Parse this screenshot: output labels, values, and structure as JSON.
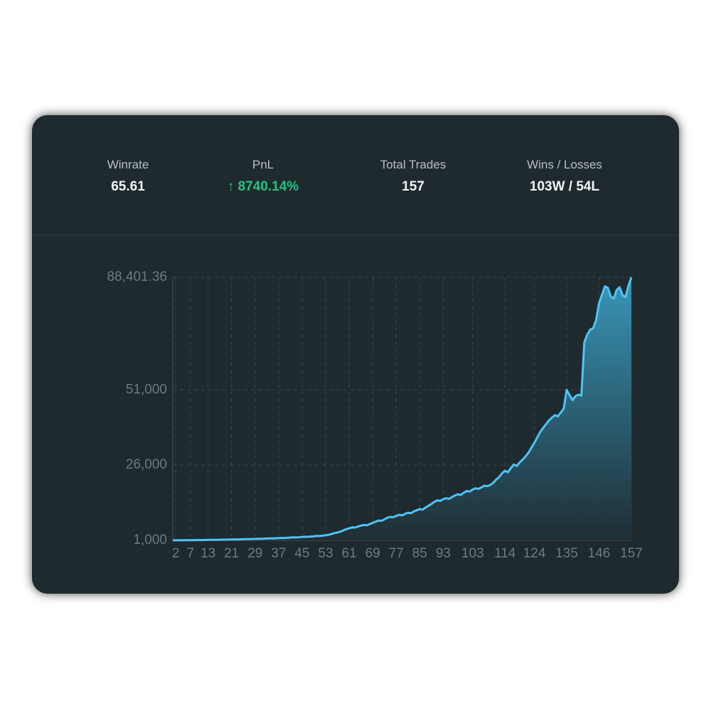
{
  "stats": [
    {
      "label": "Winrate",
      "value": "65.61"
    },
    {
      "label": "PnL",
      "value": "↑ 8740.14%"
    },
    {
      "label": "Total Trades",
      "value": "157"
    },
    {
      "label": "Wins / Losses",
      "value": "103W / 54L"
    }
  ],
  "chart_data": {
    "type": "area",
    "color": "#4fc3f7",
    "grid": true,
    "x": [
      1,
      2,
      3,
      4,
      5,
      6,
      7,
      8,
      9,
      10,
      11,
      12,
      13,
      14,
      15,
      16,
      17,
      18,
      19,
      20,
      21,
      22,
      23,
      24,
      25,
      26,
      27,
      28,
      29,
      30,
      31,
      32,
      33,
      34,
      35,
      36,
      37,
      38,
      39,
      40,
      41,
      42,
      43,
      44,
      45,
      46,
      47,
      48,
      49,
      50,
      51,
      52,
      53,
      54,
      55,
      56,
      57,
      58,
      59,
      60,
      61,
      62,
      63,
      64,
      65,
      66,
      67,
      68,
      69,
      70,
      71,
      72,
      73,
      74,
      75,
      76,
      77,
      78,
      79,
      80,
      81,
      82,
      83,
      84,
      85,
      86,
      87,
      88,
      89,
      90,
      91,
      92,
      93,
      94,
      95,
      96,
      97,
      98,
      99,
      100,
      101,
      102,
      103,
      104,
      105,
      106,
      107,
      108,
      109,
      110,
      111,
      112,
      113,
      114,
      115,
      116,
      117,
      118,
      119,
      120,
      121,
      122,
      123,
      124,
      125,
      126,
      127,
      128,
      129,
      130,
      131,
      132,
      133,
      134,
      135,
      136,
      137,
      138,
      139,
      140,
      141,
      142,
      143,
      144,
      145,
      146,
      147,
      148,
      149,
      150,
      151,
      152,
      153,
      154,
      155,
      156,
      157
    ],
    "values": [
      1000,
      1012,
      1030,
      1021,
      1045,
      1060,
      1052,
      1078,
      1095,
      1110,
      1102,
      1130,
      1150,
      1168,
      1160,
      1190,
      1215,
      1240,
      1228,
      1260,
      1290,
      1320,
      1305,
      1345,
      1380,
      1410,
      1395,
      1440,
      1480,
      1520,
      1505,
      1560,
      1610,
      1650,
      1630,
      1690,
      1740,
      1800,
      1780,
      1850,
      1920,
      1990,
      1960,
      2050,
      2130,
      2200,
      2170,
      2280,
      2380,
      2470,
      2440,
      2560,
      2700,
      2850,
      3100,
      3400,
      3600,
      3900,
      4300,
      4700,
      5000,
      5300,
      5250,
      5600,
      5900,
      6100,
      6000,
      6400,
      6800,
      7200,
      7600,
      7500,
      8000,
      8500,
      8800,
      8700,
      9100,
      9500,
      9300,
      9800,
      10200,
      10000,
      10600,
      11000,
      11400,
      11200,
      11900,
      12500,
      13100,
      13800,
      14300,
      14100,
      14700,
      15000,
      14800,
      15400,
      15900,
      16300,
      16100,
      16800,
      17400,
      17200,
      17900,
      18300,
      18100,
      18600,
      19200,
      19000,
      19400,
      20100,
      21200,
      22000,
      23300,
      24100,
      23600,
      25000,
      26200,
      25700,
      26900,
      27800,
      28900,
      30100,
      31800,
      33400,
      35200,
      37000,
      38400,
      39600,
      40900,
      41800,
      42600,
      42200,
      43500,
      44800,
      51000,
      49200,
      47600,
      48900,
      49400,
      49100,
      66800,
      69400,
      71000,
      71500,
      74200,
      79800,
      82600,
      85400,
      84900,
      82000,
      81300,
      84200,
      85100,
      82500,
      81800,
      85600,
      88401.36
    ],
    "xlim": [
      1,
      157
    ],
    "xticks": [
      2,
      7,
      13,
      21,
      29,
      37,
      45,
      53,
      61,
      69,
      77,
      85,
      93,
      103,
      114,
      124,
      135,
      146,
      157
    ],
    "ylim": [
      1000,
      88401.36
    ],
    "yticks": [
      {
        "value": 1000,
        "label": "1,000"
      },
      {
        "value": 26000,
        "label": "26,000"
      },
      {
        "value": 51000,
        "label": "51,000"
      },
      {
        "value": 88401.36,
        "label": "88,401.36"
      }
    ]
  }
}
